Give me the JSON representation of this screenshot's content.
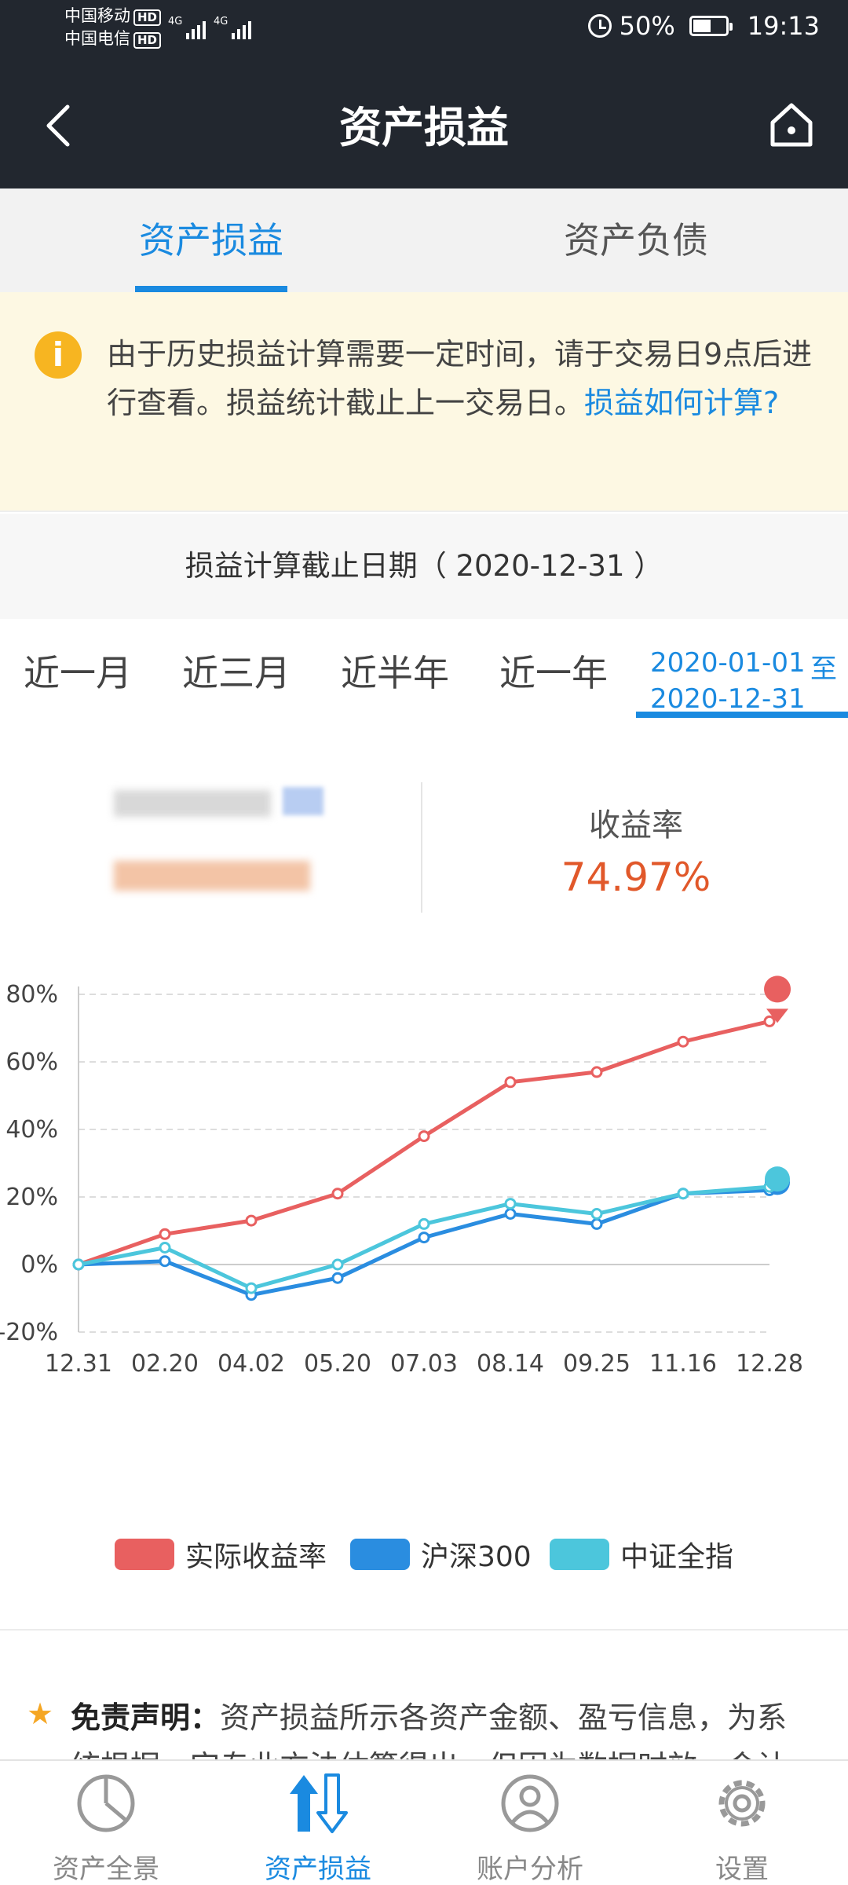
{
  "status_bar": {
    "carrier_1": "中国移动",
    "carrier_2": "中国电信",
    "hd": "HD",
    "net": "4G",
    "battery": "50%",
    "time": "19:13"
  },
  "nav": {
    "title": "资产损益"
  },
  "tabs": [
    {
      "label": "资产损益",
      "active": true
    },
    {
      "label": "资产负债",
      "active": false
    }
  ],
  "notice": {
    "text": "由于历史损益计算需要一定时间，请于交易日9点后进行查看。损益统计截止上一交易日。",
    "link": "损益如何计算?"
  },
  "date_header": "损益计算截止日期（ 2020-12-31 ）",
  "periods": [
    "近一月",
    "近三月",
    "近半年",
    "近一年"
  ],
  "custom_range": {
    "start": "2020-01-01",
    "to": "至",
    "end": "2020-12-31"
  },
  "summary": {
    "rate_label": "收益率",
    "rate_value": "74.97%"
  },
  "chart_data": {
    "type": "line",
    "x": [
      "12.31",
      "02.20",
      "04.02",
      "05.20",
      "07.03",
      "08.14",
      "09.25",
      "11.16",
      "12.28"
    ],
    "y_ticks": [
      "80%",
      "60%",
      "40%",
      "20%",
      "0%",
      "-20%"
    ],
    "ylim": [
      -20,
      80
    ],
    "grid": true,
    "legend_position": "bottom",
    "series": [
      {
        "name": "实际收益率",
        "color": "#e86060",
        "values": [
          0,
          9,
          13,
          21,
          38,
          54,
          57,
          66,
          72
        ]
      },
      {
        "name": "沪深300",
        "color": "#2a8de0",
        "values": [
          0,
          1,
          -9,
          -4,
          8,
          15,
          12,
          21,
          22
        ]
      },
      {
        "name": "中证全指",
        "color": "#4cc6dc",
        "values": [
          0,
          5,
          -7,
          0,
          12,
          18,
          15,
          21,
          23
        ]
      }
    ]
  },
  "disclaimer": {
    "title": "免责声明：",
    "text": "资产损益所示各资产金额、盈亏信息，为系统根据一定专业方法估算得出，但因为数据时效、会计"
  },
  "bottom_nav": [
    {
      "label": "资产全景",
      "icon": "pie-chart-icon",
      "active": false
    },
    {
      "label": "资产损益",
      "icon": "up-down-arrows-icon",
      "active": true
    },
    {
      "label": "账户分析",
      "icon": "user-icon",
      "active": false
    },
    {
      "label": "设置",
      "icon": "gear-icon",
      "active": false
    }
  ]
}
